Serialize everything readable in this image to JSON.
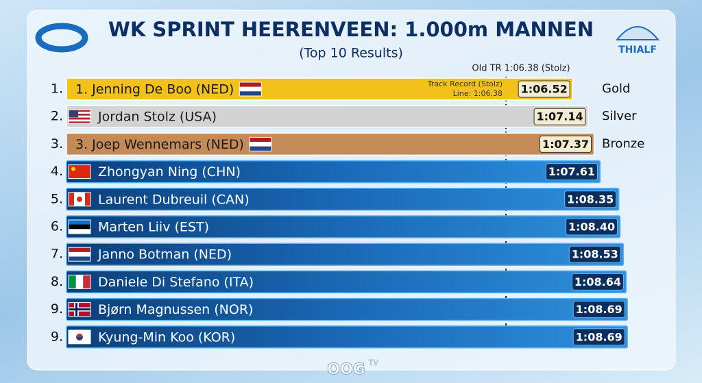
{
  "header": {
    "logo": "THIALF",
    "footer_logo": "OOG",
    "footer_logo_sup": "TV"
  },
  "chart_data": {
    "type": "bar",
    "orientation": "horizontal",
    "title": "WK SPRINT HEERENVEEN: 1.000m MANNEN",
    "subtitle": "(Top 10 Results)",
    "ranks": [
      "1.",
      "2.",
      "3.",
      "4.",
      "5.",
      "6.",
      "7.",
      "8.",
      "9.",
      "9."
    ],
    "categories": [
      "1. Jenning De Boo (NED)",
      "Jordan Stolz (USA)",
      "3. Joep Wennemars (NED)",
      "Zhongyan Ning (CHN)",
      "Laurent Dubreuil (CAN)",
      "Marten Liiv (EST)",
      "Janno Botman (NED)",
      "Daniele Di Stefano (ITA)",
      "Bjørn Magnussen (NOR)",
      "Kyung-Min Koo (KOR)"
    ],
    "medals": [
      "Gold",
      "Silver",
      "Bronze",
      null,
      null,
      null,
      null,
      null,
      null,
      null
    ],
    "values": [
      66.52,
      67.14,
      67.37,
      67.61,
      68.35,
      68.4,
      68.53,
      68.64,
      68.69,
      68.69
    ],
    "value_labels": [
      "1:06.52",
      "1:07.14",
      "1:07.37",
      "1:07.61",
      "1:08.35",
      "1:08.40",
      "1:08.53",
      "1:08.64",
      "1:08.69",
      "1:08.69"
    ],
    "colors": [
      "#f2c21b",
      "#d3d3d3",
      "#c48a58",
      "#1766b3",
      "#1766b3",
      "#1766b3",
      "#1766b3",
      "#1766b3",
      "#1766b3",
      "#1766b3"
    ],
    "reference": {
      "value": 66.38,
      "label": "Old TR 1:06.38 (Stolz)",
      "note": "Track Record (Stolz)",
      "note_line": "Line: 1:06.38"
    }
  }
}
